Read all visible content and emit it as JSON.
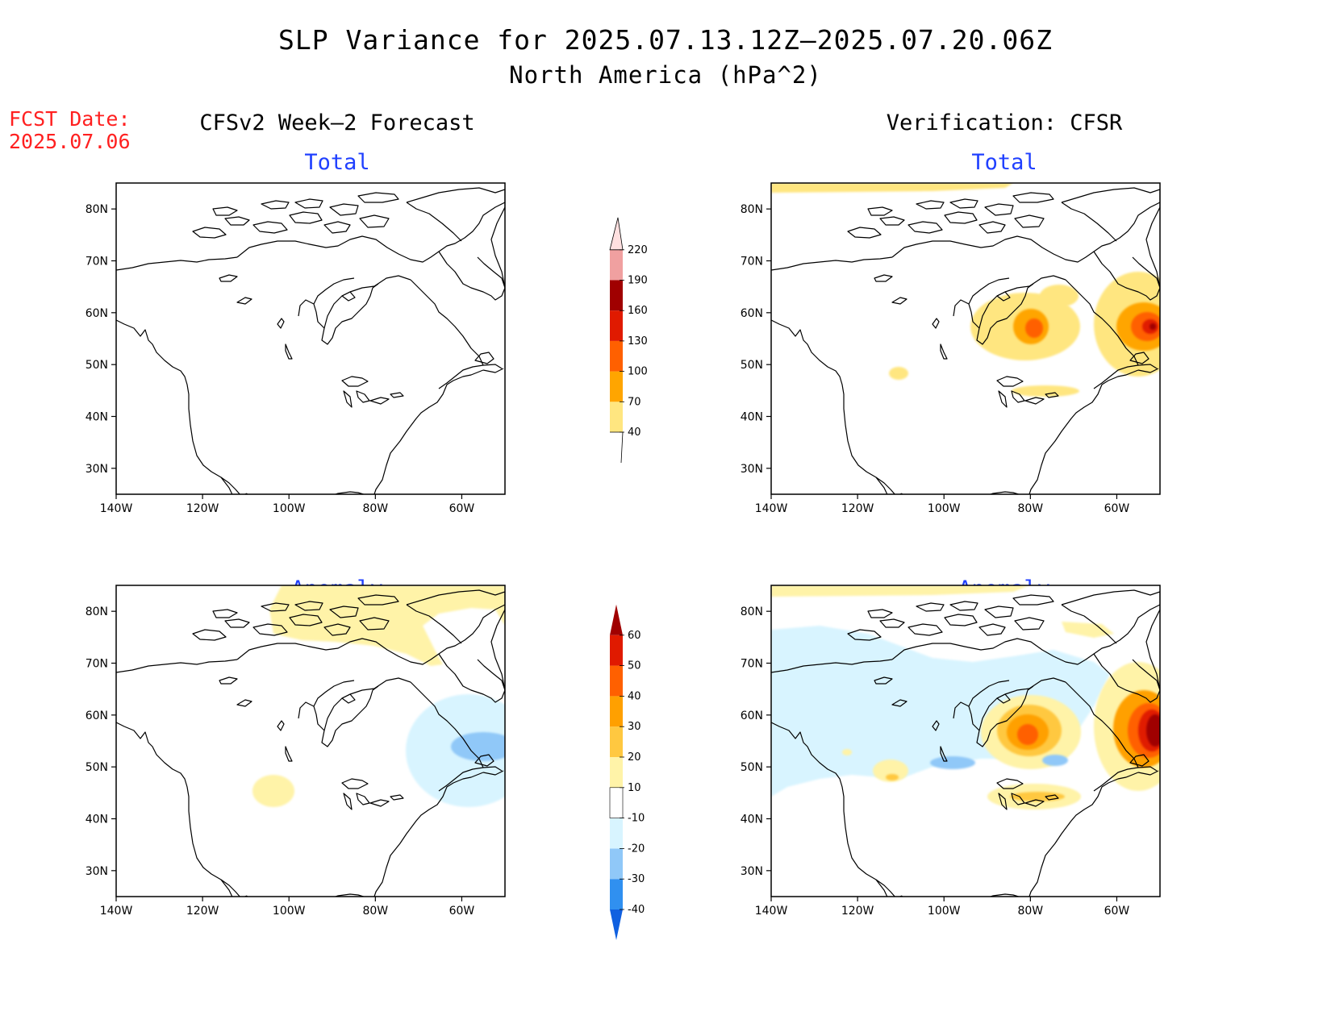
{
  "title": {
    "line1": "SLP Variance for 2025.07.13.12Z–2025.07.20.06Z",
    "line2": "North America (hPa^2)"
  },
  "fcst_date": {
    "label": "FCST Date:",
    "value": "2025.07.06"
  },
  "columns": [
    {
      "heading": "CFSv2 Week–2 Forecast"
    },
    {
      "heading": "Verification: CFSR"
    }
  ],
  "panels": {
    "forecast_total": {
      "title": "Total"
    },
    "verification_total": {
      "title": "Total"
    },
    "forecast_anomaly": {
      "title": "Anomaly"
    },
    "verification_anomaly": {
      "title": "Anomaly"
    }
  },
  "axes": {
    "lat_ticks": [
      "80N",
      "70N",
      "60N",
      "50N",
      "40N",
      "30N"
    ],
    "lon_ticks": [
      "140W",
      "120W",
      "100W",
      "80W",
      "60W"
    ]
  },
  "colorbars": {
    "total": {
      "levels": [
        "40",
        "70",
        "100",
        "130",
        "160",
        "190",
        "220"
      ],
      "colors": [
        "#ffe680",
        "#ffa500",
        "#ff6000",
        "#e01a00",
        "#a00000",
        "#f0a0a0",
        "#ffe0e0"
      ]
    },
    "anomaly": {
      "levels": [
        "-40",
        "-30",
        "-20",
        "-10",
        "10",
        "20",
        "30",
        "40",
        "50",
        "60"
      ],
      "colors": [
        "#1060e0",
        "#3090f0",
        "#90c8f8",
        "#d8f4ff",
        "#ffffff",
        "#fff3a8",
        "#ffc840",
        "#ffa000",
        "#ff6000",
        "#e01a00",
        "#a00000"
      ]
    }
  }
}
